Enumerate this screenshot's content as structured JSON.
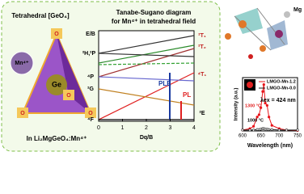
{
  "left": {
    "title": "Tetrahedral [GeO₄]",
    "ion": "Mn⁴⁺",
    "center": "Ge",
    "oxygen": [
      "O",
      "O",
      "O",
      "O"
    ],
    "formula": "In Li₂MgGeO₄:Mn⁴⁺"
  },
  "ts": {
    "title": "Tanabe-Sugano diagram",
    "subtitle": "for Mn⁴⁺ in tetrahedral field",
    "ylabel": "E/B",
    "xlabel": "Dq/B",
    "xticks": [
      0,
      1,
      2,
      3,
      4
    ],
    "levels_left": [
      "²H,²P",
      "⁴P",
      "²G",
      "⁴F"
    ],
    "levels_right": [
      "²T₁",
      "²T₂",
      "⁴T₁",
      "²E"
    ],
    "ple": "PLE",
    "pl": "PL"
  },
  "crystal": {
    "label": "Mg"
  },
  "chart_data": {
    "type": "line",
    "xlabel": "Wavelength (nm)",
    "ylabel": "Intensity (a.u.)",
    "annotation": "λex = 424 nm",
    "labels": [
      "1300 °C",
      "1000 °C"
    ],
    "xlim": [
      600,
      750
    ],
    "xticks": [
      600,
      650,
      700,
      750
    ],
    "ylim": [
      0,
      1.15
    ],
    "x": [
      600,
      620,
      630,
      640,
      645,
      650,
      655,
      658,
      662,
      667,
      672,
      680,
      700,
      720,
      750
    ],
    "series": [
      {
        "name": "LMGO-Mn-1.2",
        "color": "#e8141a",
        "values": [
          0.02,
          0.05,
          0.1,
          0.3,
          0.35,
          0.5,
          0.85,
          1.0,
          0.6,
          0.55,
          0.3,
          0.12,
          0.05,
          0.02,
          0.01
        ]
      },
      {
        "name": "LMGO-Mn-0.0",
        "color": "#222222",
        "values": [
          0.02,
          0.02,
          0.02,
          0.03,
          0.03,
          0.04,
          0.05,
          0.05,
          0.04,
          0.04,
          0.03,
          0.03,
          0.02,
          0.02,
          0.02
        ]
      }
    ]
  }
}
